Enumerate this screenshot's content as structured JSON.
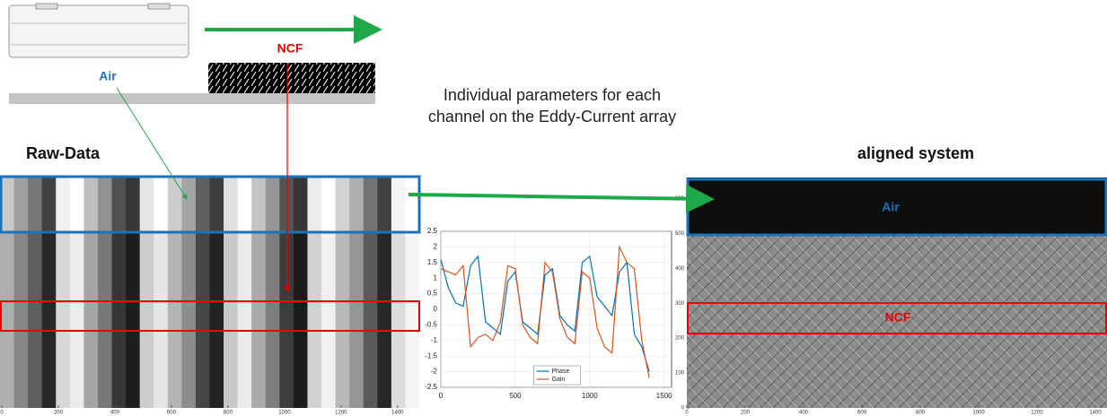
{
  "labels": {
    "raw_air": "Air",
    "raw_ncf": "NCF",
    "raw_title": "Raw-Data",
    "description": "Individual parameters for each channel on the Eddy-Current array",
    "aligned_title": "aligned system",
    "aligned_air": "Air",
    "aligned_ncf": "NCF"
  },
  "raw_image": {
    "xlim": [
      0,
      1445
    ],
    "xticks": [
      0,
      200,
      400,
      600,
      800,
      1000,
      1200,
      1400
    ]
  },
  "aligned_image": {
    "xlim": [
      0,
      1440
    ],
    "ylim": [
      0,
      660
    ],
    "xticks": [
      0,
      200,
      400,
      600,
      800,
      1000,
      1200,
      1400
    ],
    "yticks": [
      0,
      100,
      200,
      300,
      400,
      500,
      600
    ]
  },
  "chart_data": {
    "type": "line",
    "x": [
      0,
      50,
      100,
      150,
      200,
      250,
      300,
      350,
      400,
      450,
      500,
      550,
      600,
      650,
      700,
      750,
      800,
      850,
      900,
      950,
      1000,
      1050,
      1100,
      1150,
      1200,
      1250,
      1300,
      1350,
      1400
    ],
    "series": [
      {
        "name": "Phase",
        "color": "#0072bd",
        "values": [
          1.6,
          0.7,
          0.2,
          0.1,
          1.4,
          1.7,
          -0.4,
          -0.6,
          -0.8,
          0.9,
          1.2,
          -0.4,
          -0.6,
          -0.8,
          1.1,
          1.3,
          -0.2,
          -0.5,
          -0.7,
          1.5,
          1.7,
          0.4,
          0.1,
          -0.2,
          1.2,
          1.5,
          -0.8,
          -1.2,
          -2.0
        ]
      },
      {
        "name": "Gain",
        "color": "#d95319",
        "values": [
          1.3,
          1.2,
          1.1,
          1.4,
          -1.2,
          -0.9,
          -0.8,
          -1.0,
          -0.4,
          1.4,
          1.3,
          -0.5,
          -0.9,
          -1.1,
          1.5,
          1.2,
          -0.3,
          -0.9,
          -1.1,
          1.2,
          1.0,
          -0.6,
          -1.2,
          -1.4,
          2.0,
          1.5,
          1.3,
          -1.0,
          -2.2
        ]
      }
    ],
    "xlim": [
      0,
      1550
    ],
    "ylim": [
      -2.5,
      2.5
    ],
    "xticks": [
      0,
      500,
      1000,
      1500
    ],
    "yticks": [
      2.5,
      2,
      1.5,
      1,
      0.5,
      0,
      -0.5,
      -1,
      -1.5,
      -2,
      -2.5
    ],
    "grid": true,
    "legend": "lower center"
  }
}
